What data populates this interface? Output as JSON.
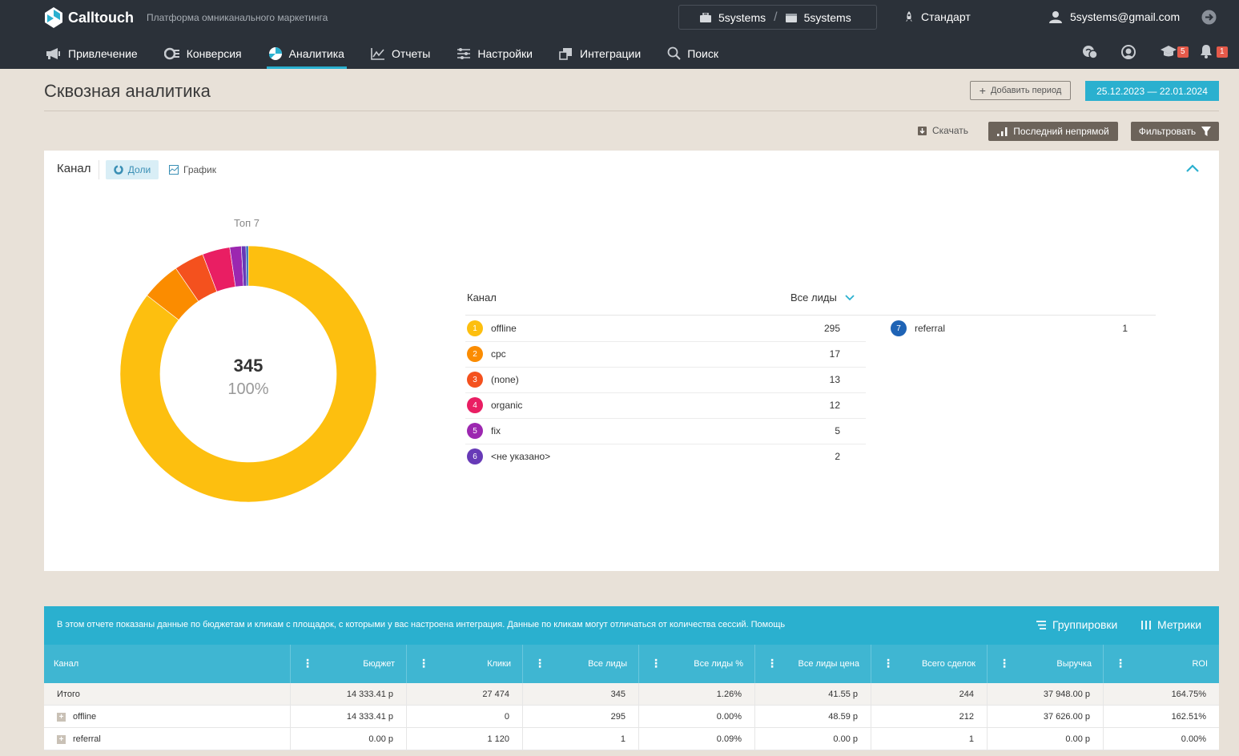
{
  "app": {
    "name": "Calltouch",
    "tagline": "Платформа омниканального маркетинга",
    "project_a": "5systems",
    "project_b": "5systems",
    "project_sep": "/",
    "plan": "Стандарт",
    "user_email": "5systems@gmail.com"
  },
  "nav": {
    "items": [
      {
        "label": "Привлечение",
        "icon": "megaphone-icon"
      },
      {
        "label": "Конверсия",
        "icon": "conversion-icon"
      },
      {
        "label": "Аналитика",
        "icon": "analytics-icon",
        "active": true
      },
      {
        "label": "Отчеты",
        "icon": "chart-icon"
      },
      {
        "label": "Настройки",
        "icon": "sliders-icon"
      },
      {
        "label": "Интеграции",
        "icon": "integrations-icon"
      },
      {
        "label": "Поиск",
        "icon": "search-icon"
      }
    ],
    "right": {
      "education_badge": "5",
      "notifications_badge": "1"
    }
  },
  "header": {
    "title": "Сквозная аналитика",
    "add_period": "Добавить период",
    "date_range": "25.12.2023  —  22.01.2024",
    "download": "Скачать",
    "attribution_model": "Последний непрямой",
    "filter": "Фильтровать"
  },
  "card": {
    "title": "Канал",
    "tab_share": "Доли",
    "tab_graph": "График",
    "top_label": "Топ 7",
    "center_total": "345",
    "center_pct": "100%",
    "legend_col_channel": "Канал",
    "legend_col_metric": "Все лиды"
  },
  "chart_data": {
    "type": "pie",
    "title": "Топ 7",
    "total": 345,
    "slices": [
      {
        "rank": "1",
        "label": "offline",
        "value": 295,
        "color": "#fdbf0f"
      },
      {
        "rank": "2",
        "label": "cpc",
        "value": 17,
        "color": "#fb8c00"
      },
      {
        "rank": "3",
        "label": "(none)",
        "value": 13,
        "color": "#f4511e"
      },
      {
        "rank": "4",
        "label": "organic",
        "value": 12,
        "color": "#e91e63"
      },
      {
        "rank": "5",
        "label": "fix",
        "value": 5,
        "color": "#9c27b0"
      },
      {
        "rank": "6",
        "label": "<не указано>",
        "value": 2,
        "color": "#673ab7"
      },
      {
        "rank": "7",
        "label": "referral",
        "value": 1,
        "color": "#1e63b5"
      }
    ]
  },
  "table": {
    "info": "В этом отчете показаны данные по бюджетам и кликам с площадок, с которыми у вас настроена интеграция. Данные по кликам могут отличаться от количества сессий. Помощь",
    "groupings": "Группировки",
    "metrics": "Метрики",
    "columns": [
      "Канал",
      "Бюджет",
      "Клики",
      "Все лиды",
      "Все лиды %",
      "Все лиды цена",
      "Всего сделок",
      "Выручка",
      "ROI"
    ],
    "rows": [
      {
        "cells": [
          "Итого",
          "14 333.41 р",
          "27 474",
          "345",
          "1.26%",
          "41.55 р",
          "244",
          "37 948.00 р",
          "164.75%"
        ]
      },
      {
        "cells": [
          "offline",
          "14 333.41 р",
          "0",
          "295",
          "0.00%",
          "48.59 р",
          "212",
          "37 626.00 р",
          "162.51%"
        ]
      },
      {
        "cells": [
          "referral",
          "0.00 р",
          "1 120",
          "1",
          "0.09%",
          "0.00 р",
          "1",
          "0.00 р",
          "0.00%"
        ]
      }
    ]
  }
}
